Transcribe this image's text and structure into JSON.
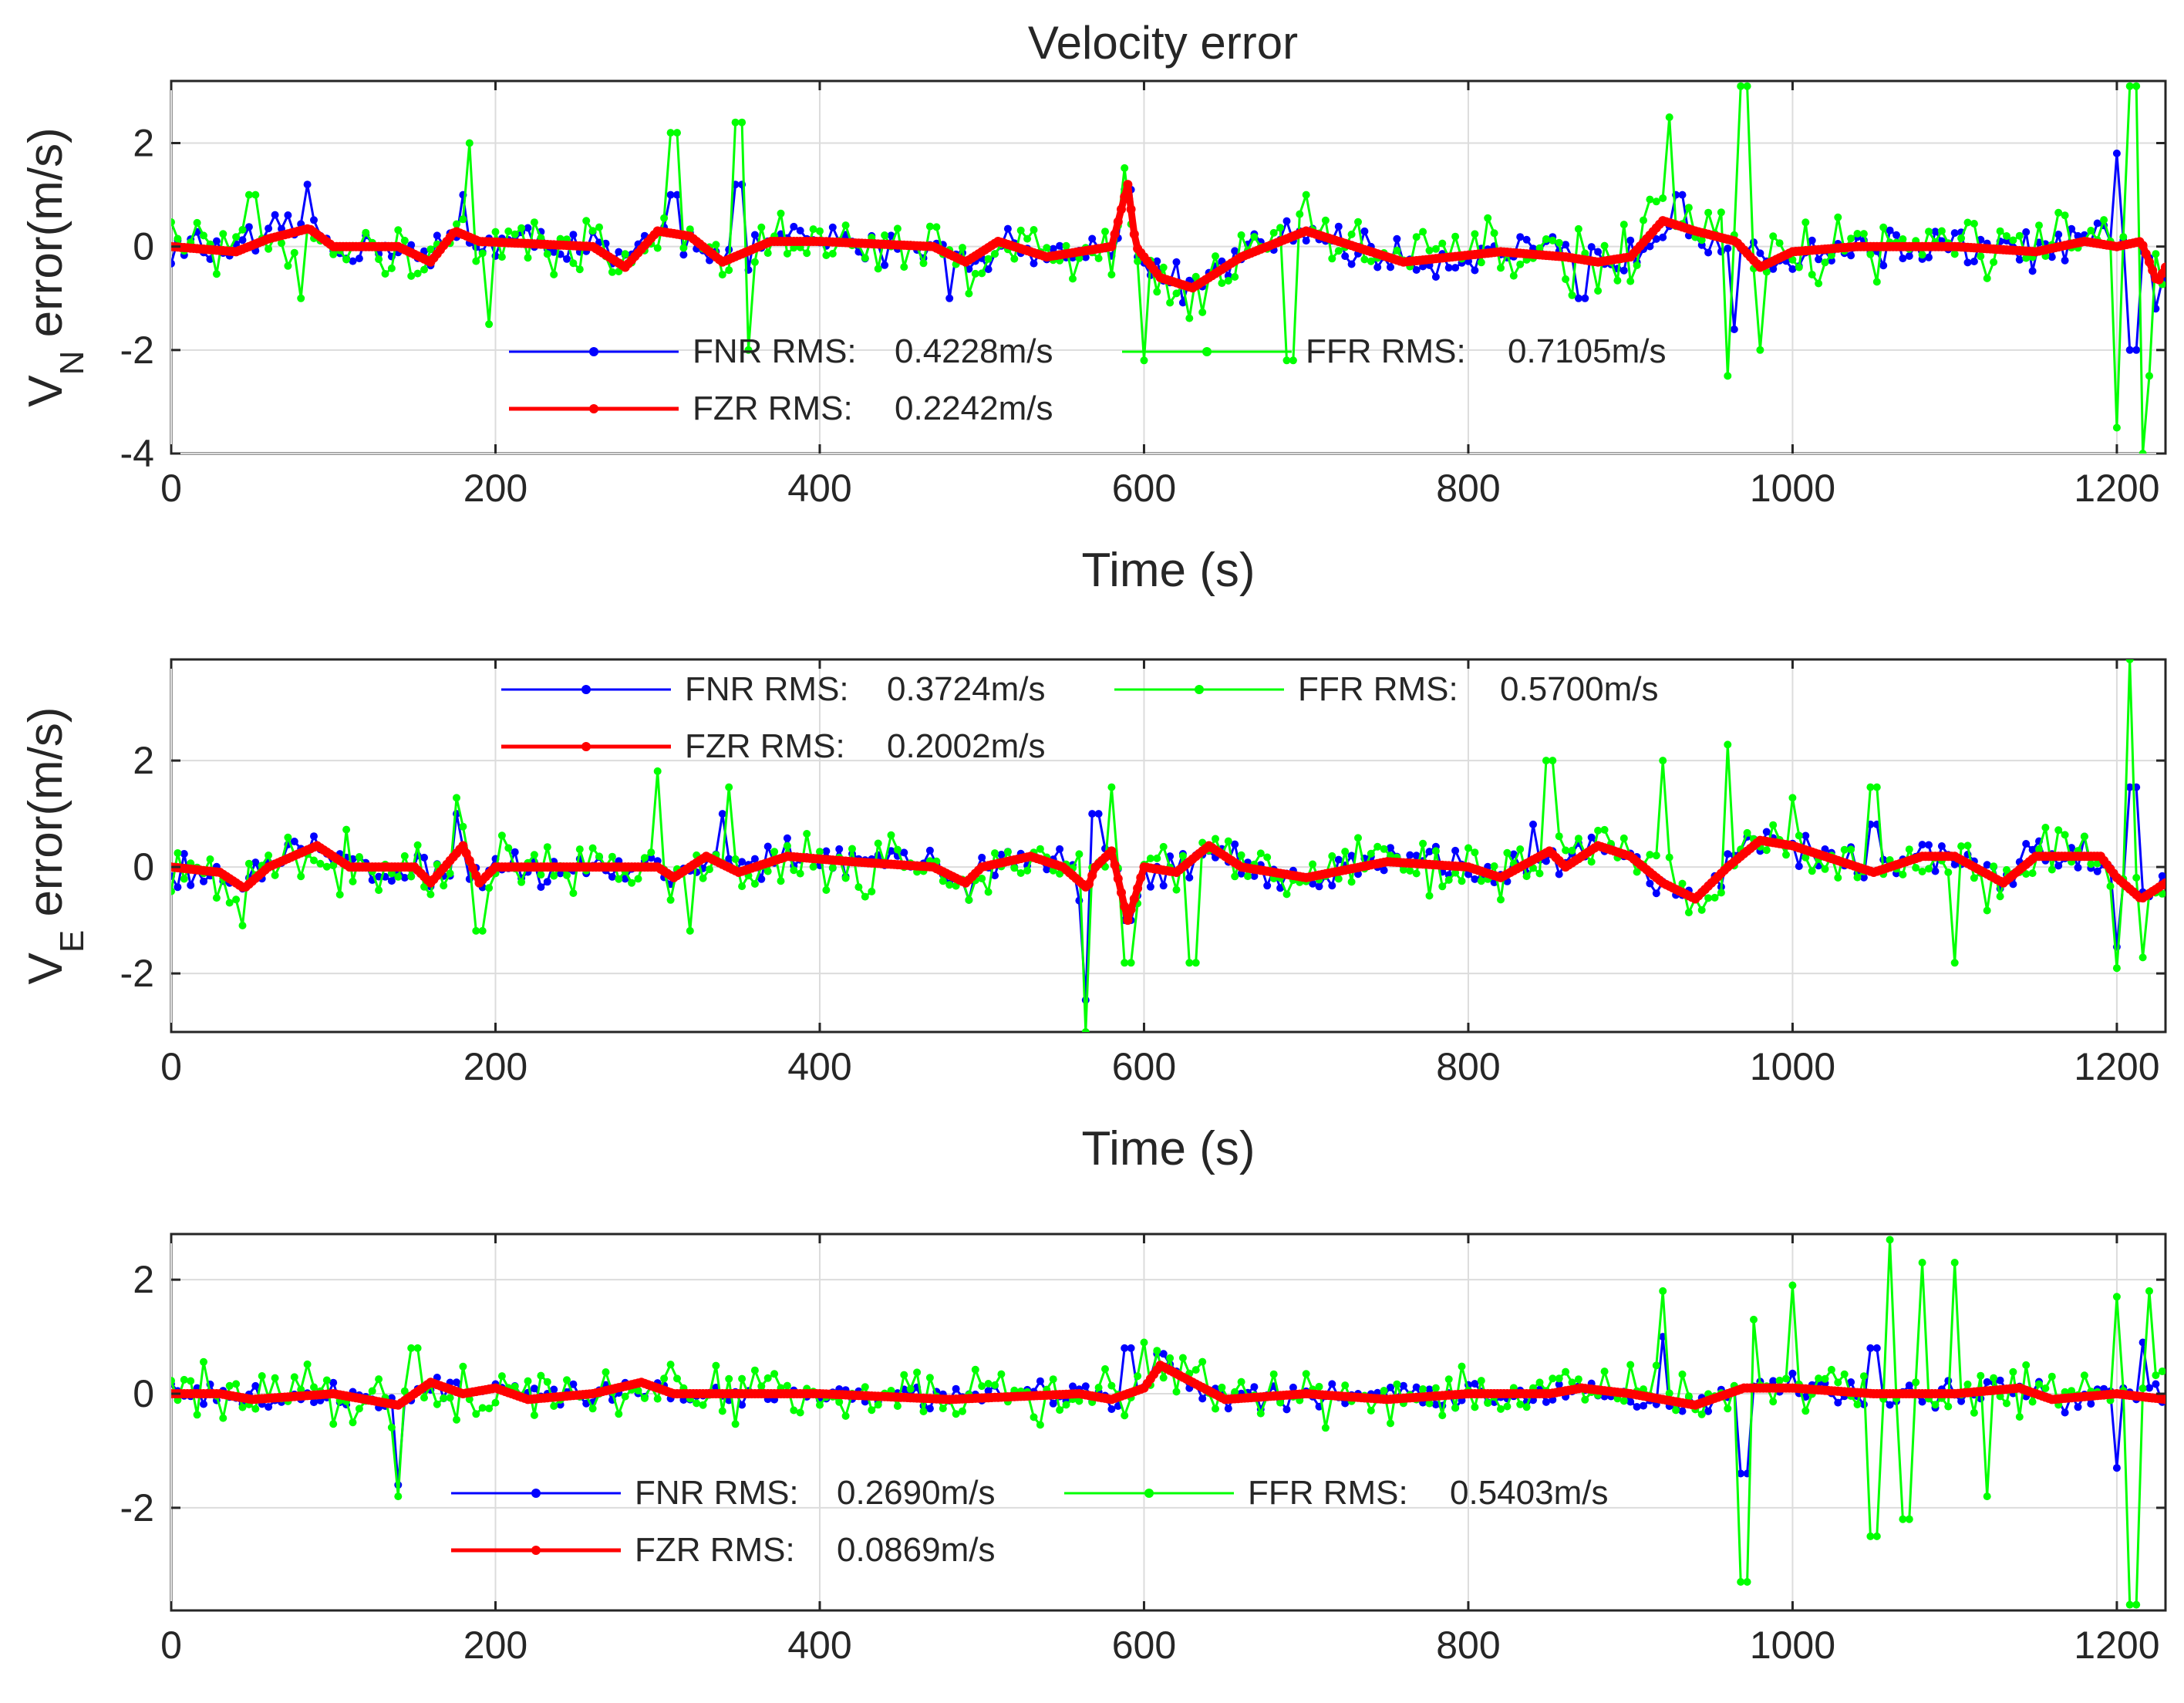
{
  "chart_data": [
    {
      "type": "line",
      "title": "Velocity error",
      "xlabel": "Time (s)",
      "ylabel_main": "V",
      "ylabel_subscript": "N",
      "ylabel_rest": " error(m/s)",
      "xlim": [
        0,
        1230
      ],
      "ylim": [
        -4,
        3.2
      ],
      "xticks": [
        0,
        200,
        400,
        600,
        800,
        1000,
        1200
      ],
      "yticks": [
        -4,
        -2,
        0,
        2
      ],
      "legend_position": "lower-middle",
      "series": [
        {
          "name": "FNR",
          "color": "#0000ff",
          "rms_label": "FNR RMS:",
          "rms_value": "0.4228m/s",
          "amplitude": 0.33,
          "spikes": [
            [
              85,
              1.2
            ],
            [
              180,
              1.0
            ],
            [
              310,
              1.0
            ],
            [
              350,
              1.2
            ],
            [
              480,
              -1.0
            ],
            [
              590,
              1.1
            ],
            [
              870,
              -1.0
            ],
            [
              930,
              1.0
            ],
            [
              965,
              -1.6
            ],
            [
              1200,
              1.8
            ],
            [
              1210,
              -2.0
            ],
            [
              1225,
              -1.2
            ]
          ]
        },
        {
          "name": "FZR",
          "color": "#ff0000",
          "rms_label": "FZR RMS:",
          "rms_value": "0.2242m/s",
          "amplitude": 0.0,
          "trend": [
            [
              0,
              0
            ],
            [
              40,
              -0.1
            ],
            [
              60,
              0.15
            ],
            [
              85,
              0.35
            ],
            [
              100,
              0
            ],
            [
              140,
              0
            ],
            [
              160,
              -0.3
            ],
            [
              175,
              0.3
            ],
            [
              190,
              0.1
            ],
            [
              260,
              0
            ],
            [
              280,
              -0.4
            ],
            [
              300,
              0.3
            ],
            [
              320,
              0.2
            ],
            [
              340,
              -0.3
            ],
            [
              370,
              0.1
            ],
            [
              400,
              0.1
            ],
            [
              470,
              0
            ],
            [
              490,
              -0.3
            ],
            [
              510,
              0.1
            ],
            [
              540,
              -0.2
            ],
            [
              580,
              0
            ],
            [
              590,
              1.2
            ],
            [
              595,
              0
            ],
            [
              610,
              -0.6
            ],
            [
              630,
              -0.8
            ],
            [
              660,
              -0.2
            ],
            [
              700,
              0.3
            ],
            [
              740,
              -0.1
            ],
            [
              760,
              -0.3
            ],
            [
              820,
              -0.1
            ],
            [
              860,
              -0.2
            ],
            [
              880,
              -0.3
            ],
            [
              900,
              -0.2
            ],
            [
              920,
              0.5
            ],
            [
              940,
              0.3
            ],
            [
              965,
              0.1
            ],
            [
              980,
              -0.4
            ],
            [
              1000,
              -0.1
            ],
            [
              1040,
              0
            ],
            [
              1100,
              0
            ],
            [
              1150,
              -0.1
            ],
            [
              1180,
              0.1
            ],
            [
              1200,
              0
            ],
            [
              1215,
              0.1
            ],
            [
              1225,
              -0.7
            ],
            [
              1230,
              -0.4
            ]
          ]
        },
        {
          "name": "FFR",
          "color": "#00ff00",
          "rms_label": "FFR RMS:",
          "rms_value": "0.7105m/s",
          "amplitude": 0.55,
          "spikes": [
            [
              50,
              1.0
            ],
            [
              80,
              -1.0
            ],
            [
              185,
              2.0
            ],
            [
              195,
              -1.5
            ],
            [
              310,
              2.2
            ],
            [
              350,
              2.4
            ],
            [
              355,
              -2.0
            ],
            [
              600,
              -2.2
            ],
            [
              690,
              -2.2
            ],
            [
              700,
              1.0
            ],
            [
              925,
              2.5
            ],
            [
              960,
              -2.5
            ],
            [
              970,
              3.1
            ],
            [
              980,
              -2.0
            ],
            [
              1200,
              -3.5
            ],
            [
              1210,
              3.1
            ],
            [
              1215,
              -4.0
            ],
            [
              1220,
              -2.5
            ]
          ]
        }
      ]
    },
    {
      "type": "line",
      "title": "",
      "xlabel": "Time (s)",
      "ylabel_main": "V",
      "ylabel_subscript": "E",
      "ylabel_rest": " error(m/s)",
      "xlim": [
        0,
        1230
      ],
      "ylim": [
        -3.1,
        3.9
      ],
      "xticks": [
        0,
        200,
        400,
        600,
        800,
        1000,
        1200
      ],
      "yticks": [
        -2,
        0,
        2
      ],
      "legend_position": "top-middle",
      "series": [
        {
          "name": "FNR",
          "color": "#0000ff",
          "rms_label": "FNR RMS:",
          "rms_value": "0.3724m/s",
          "amplitude": 0.3,
          "spikes": [
            [
              175,
              1.0
            ],
            [
              340,
              1.0
            ],
            [
              565,
              -2.5
            ],
            [
              570,
              1.0
            ],
            [
              590,
              -1.0
            ],
            [
              840,
              0.8
            ],
            [
              1050,
              0.8
            ],
            [
              1200,
              -1.5
            ],
            [
              1210,
              1.5
            ]
          ]
        },
        {
          "name": "FZR",
          "color": "#ff0000",
          "rms_label": "FZR RMS:",
          "rms_value": "0.2002m/s",
          "amplitude": 0.0,
          "trend": [
            [
              0,
              0
            ],
            [
              30,
              -0.1
            ],
            [
              45,
              -0.4
            ],
            [
              60,
              0
            ],
            [
              90,
              0.4
            ],
            [
              110,
              0
            ],
            [
              150,
              0
            ],
            [
              160,
              -0.3
            ],
            [
              180,
              0.4
            ],
            [
              190,
              -0.3
            ],
            [
              200,
              0
            ],
            [
              300,
              0
            ],
            [
              310,
              -0.2
            ],
            [
              330,
              0.2
            ],
            [
              350,
              -0.1
            ],
            [
              380,
              0.2
            ],
            [
              420,
              0.1
            ],
            [
              470,
              0
            ],
            [
              490,
              -0.3
            ],
            [
              500,
              0
            ],
            [
              530,
              0.2
            ],
            [
              550,
              0
            ],
            [
              565,
              -0.4
            ],
            [
              570,
              0
            ],
            [
              580,
              0.3
            ],
            [
              590,
              -1.0
            ],
            [
              600,
              0
            ],
            [
              620,
              -0.1
            ],
            [
              640,
              0.4
            ],
            [
              660,
              0
            ],
            [
              700,
              -0.2
            ],
            [
              750,
              0.1
            ],
            [
              800,
              0
            ],
            [
              820,
              -0.2
            ],
            [
              850,
              0.3
            ],
            [
              860,
              0
            ],
            [
              880,
              0.4
            ],
            [
              900,
              0.2
            ],
            [
              920,
              -0.3
            ],
            [
              940,
              -0.6
            ],
            [
              960,
              0
            ],
            [
              980,
              0.5
            ],
            [
              1000,
              0.4
            ],
            [
              1050,
              -0.1
            ],
            [
              1080,
              0.2
            ],
            [
              1100,
              0.2
            ],
            [
              1130,
              -0.3
            ],
            [
              1150,
              0.2
            ],
            [
              1190,
              0.2
            ],
            [
              1200,
              -0.2
            ],
            [
              1215,
              -0.6
            ],
            [
              1230,
              -0.3
            ]
          ]
        },
        {
          "name": "FFR",
          "color": "#00ff00",
          "rms_label": "FFR RMS:",
          "rms_value": "0.5700m/s",
          "amplitude": 0.5,
          "spikes": [
            [
              45,
              -1.1
            ],
            [
              175,
              1.3
            ],
            [
              190,
              -1.2
            ],
            [
              300,
              1.8
            ],
            [
              320,
              -1.2
            ],
            [
              345,
              1.5
            ],
            [
              565,
              -3.1
            ],
            [
              580,
              1.5
            ],
            [
              590,
              -1.8
            ],
            [
              630,
              -1.8
            ],
            [
              850,
              2.0
            ],
            [
              920,
              2.0
            ],
            [
              960,
              2.3
            ],
            [
              1000,
              1.3
            ],
            [
              1050,
              1.5
            ],
            [
              1100,
              -1.8
            ],
            [
              1200,
              -1.9
            ],
            [
              1208,
              3.9
            ],
            [
              1215,
              -1.7
            ]
          ]
        }
      ]
    },
    {
      "type": "line",
      "title": "",
      "xlabel": "",
      "ylabel_main": "",
      "ylabel_subscript": "",
      "ylabel_rest": "",
      "xlim": [
        0,
        1230
      ],
      "ylim": [
        -3.8,
        2.8
      ],
      "xticks": [
        0,
        200,
        400,
        600,
        800,
        1000,
        1200
      ],
      "yticks": [
        -2,
        0,
        2
      ],
      "legend_position": "lower-middle",
      "series": [
        {
          "name": "FNR",
          "color": "#0000ff",
          "rms_label": "FNR RMS:",
          "rms_value": "0.2690m/s",
          "amplitude": 0.2,
          "spikes": [
            [
              140,
              -1.6
            ],
            [
              590,
              0.8
            ],
            [
              610,
              0.7
            ],
            [
              920,
              1.0
            ],
            [
              970,
              -1.4
            ],
            [
              1050,
              0.8
            ],
            [
              1200,
              -1.3
            ],
            [
              1215,
              0.9
            ]
          ]
        },
        {
          "name": "FZR",
          "color": "#ff0000",
          "rms_label": "FZR RMS:",
          "rms_value": "0.0869m/s",
          "amplitude": 0.0,
          "trend": [
            [
              0,
              0
            ],
            [
              30,
              0
            ],
            [
              50,
              -0.1
            ],
            [
              100,
              0
            ],
            [
              140,
              -0.2
            ],
            [
              160,
              0.2
            ],
            [
              180,
              0
            ],
            [
              200,
              0.1
            ],
            [
              220,
              -0.1
            ],
            [
              260,
              0
            ],
            [
              290,
              0.2
            ],
            [
              310,
              0
            ],
            [
              400,
              0
            ],
            [
              480,
              -0.1
            ],
            [
              560,
              0
            ],
            [
              580,
              -0.1
            ],
            [
              600,
              0.1
            ],
            [
              610,
              0.5
            ],
            [
              630,
              0.2
            ],
            [
              650,
              -0.1
            ],
            [
              700,
              0
            ],
            [
              750,
              -0.1
            ],
            [
              800,
              0
            ],
            [
              850,
              0
            ],
            [
              870,
              0.1
            ],
            [
              900,
              0
            ],
            [
              940,
              -0.2
            ],
            [
              970,
              0.1
            ],
            [
              1000,
              0.1
            ],
            [
              1050,
              0
            ],
            [
              1100,
              0
            ],
            [
              1140,
              0.1
            ],
            [
              1160,
              -0.1
            ],
            [
              1200,
              0
            ],
            [
              1230,
              -0.1
            ]
          ]
        },
        {
          "name": "FFR",
          "color": "#00ff00",
          "rms_label": "FFR RMS:",
          "rms_value": "0.5403m/s",
          "amplitude": 0.45,
          "spikes": [
            [
              140,
              -1.8
            ],
            [
              150,
              0.8
            ],
            [
              600,
              0.9
            ],
            [
              920,
              1.8
            ],
            [
              970,
              -3.3
            ],
            [
              975,
              1.3
            ],
            [
              1000,
              1.9
            ],
            [
              1050,
              -2.5
            ],
            [
              1060,
              2.7
            ],
            [
              1070,
              -2.2
            ],
            [
              1080,
              2.3
            ],
            [
              1100,
              2.3
            ],
            [
              1120,
              -1.8
            ],
            [
              1200,
              1.7
            ],
            [
              1210,
              -3.7
            ],
            [
              1220,
              1.8
            ]
          ]
        }
      ]
    }
  ]
}
